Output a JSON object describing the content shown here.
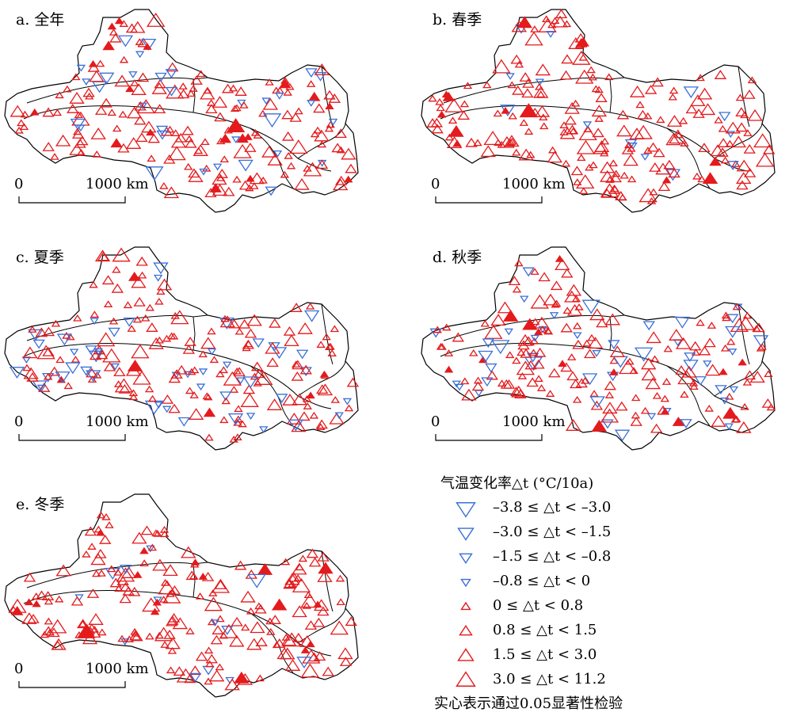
{
  "panels": [
    {
      "id": "a",
      "title": "a. 全年",
      "blue_frac": 0.12,
      "filled_frac": 0.12,
      "seed": 11
    },
    {
      "id": "b",
      "title": "b. 春季",
      "blue_frac": 0.05,
      "filled_frac": 0.06,
      "seed": 23
    },
    {
      "id": "c",
      "title": "c. 夏季",
      "blue_frac": 0.2,
      "filled_frac": 0.02,
      "seed": 37
    },
    {
      "id": "d",
      "title": "d. 秋季",
      "blue_frac": 0.22,
      "filled_frac": 0.05,
      "seed": 41
    },
    {
      "id": "e",
      "title": "e. 冬季",
      "blue_frac": 0.06,
      "filled_frac": 0.12,
      "seed": 53
    }
  ],
  "scale_bar": {
    "zero": "0",
    "distance": "1000 km"
  },
  "legend": {
    "title": "气温变化率△t (°C/10a)",
    "items": [
      {
        "label": "–3.8 ≤ △t < –3.0",
        "symbol": "down",
        "color": "#3a6fd8",
        "level": 4
      },
      {
        "label": "–3.0 ≤ △t < –1.5",
        "symbol": "down",
        "color": "#3a6fd8",
        "level": 3
      },
      {
        "label": "–1.5 ≤ △t < –0.8",
        "symbol": "down",
        "color": "#3a6fd8",
        "level": 2
      },
      {
        "label": "–0.8 ≤ △t < 0",
        "symbol": "down",
        "color": "#3a6fd8",
        "level": 1
      },
      {
        "label": "0 ≤ △t < 0.8",
        "symbol": "up",
        "color": "#e41a1c",
        "level": 1
      },
      {
        "label": "0.8 ≤ △t < 1.5",
        "symbol": "up",
        "color": "#e41a1c",
        "level": 2
      },
      {
        "label": "1.5 ≤ △t < 3.0",
        "symbol": "up",
        "color": "#e41a1c",
        "level": 3
      },
      {
        "label": "3.0 ≤ △t < 11.2",
        "symbol": "up",
        "color": "#e41a1c",
        "level": 4
      }
    ],
    "note": "实心表示通过0.05显著性检验"
  }
}
